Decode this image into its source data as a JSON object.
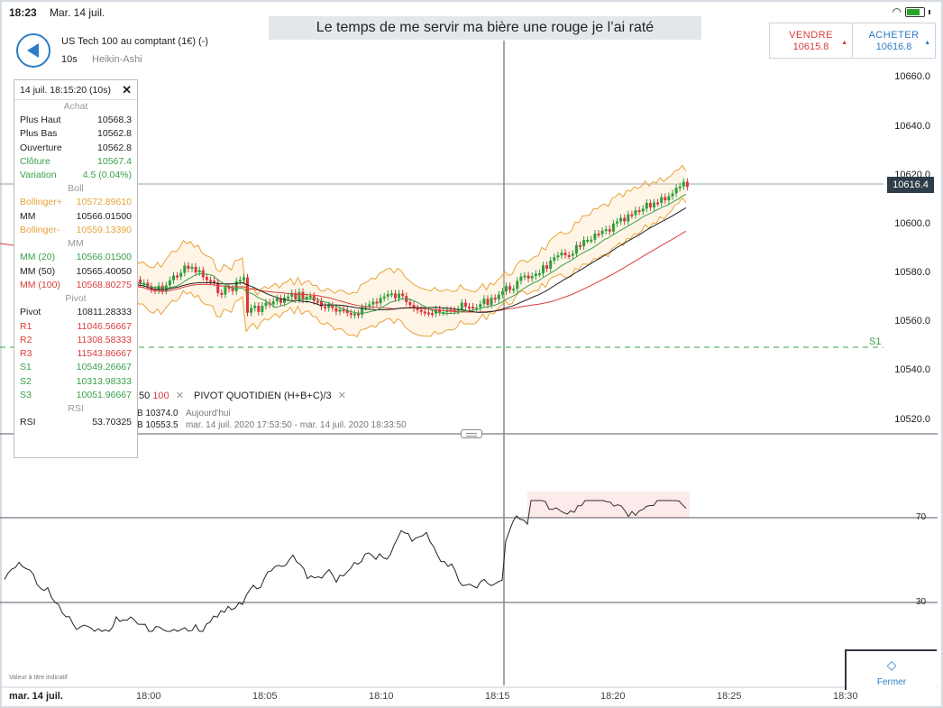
{
  "status_bar": {
    "time": "18:23",
    "date": "Mar. 14 juil."
  },
  "caption": "Le temps de me servir ma bière une rouge je l’ai raté",
  "instrument": {
    "name": "US Tech 100 au comptant (1€) (-)",
    "timeframe": "10s",
    "chart_type": "Heikin-Ashi"
  },
  "trade": {
    "sell_label": "VENDRE",
    "sell_price": "10615.8",
    "buy_label": "ACHETER",
    "buy_price": "10616.8"
  },
  "price_axis": [
    "10660.0",
    "10640.0",
    "10620.0",
    "10600.0",
    "10580.0",
    "10560.0",
    "10540.0",
    "10520.0"
  ],
  "last_price": "10616.4",
  "s1_label": "S1",
  "rsi_levels": [
    "70",
    "30"
  ],
  "time_axis": [
    "18:00",
    "18:05",
    "18:10",
    "18:15",
    "18:20",
    "18:25",
    "18:30"
  ],
  "date_label": "mar. 14 juil.",
  "disclaimer": "Valeur à titre indicatif",
  "close_button": "Fermer",
  "indicators": {
    "row1_prefix": "50",
    "row1_red": "100",
    "row1_pivot": "PIVOT  QUOTIDIEN  (H+B+C)/3",
    "row2_value": "B 10374.0",
    "row2_note": "Aujourd'hui",
    "row3_value": "B 10553.5",
    "row3_note": "mar. 14 juil. 2020 17:53:50 - mar. 14 juil. 2020 18:33:50"
  },
  "info_panel": {
    "header": "14 juil. 18:15:20 (10s)",
    "sections": [
      {
        "title": "Achat",
        "rows": [
          {
            "label": "Plus Haut",
            "value": "10568.3",
            "color": "#222222"
          },
          {
            "label": "Plus Bas",
            "value": "10562.8",
            "color": "#222222"
          },
          {
            "label": "Ouverture",
            "value": "10562.8",
            "color": "#222222"
          },
          {
            "label": "Clôture",
            "value": "10567.4",
            "color": "#3aa04a"
          },
          {
            "label": "Variation",
            "value": "4.5 (0.04%)",
            "color": "#3aa04a"
          }
        ]
      },
      {
        "title": "Boll",
        "rows": [
          {
            "label": "Bollinger+",
            "value": "10572.89610",
            "color": "#e8a33a"
          },
          {
            "label": "MM",
            "value": "10566.01500",
            "color": "#222222"
          },
          {
            "label": "Bollinger-",
            "value": "10559.13390",
            "color": "#e8a33a"
          }
        ]
      },
      {
        "title": "MM",
        "rows": [
          {
            "label": "MM (20)",
            "value": "10566.01500",
            "color": "#3aa04a"
          },
          {
            "label": "MM (50)",
            "value": "10565.40050",
            "color": "#222222"
          },
          {
            "label": "MM (100)",
            "value": "10568.80275",
            "color": "#d93c3c"
          }
        ]
      },
      {
        "title": "Pivot",
        "rows": [
          {
            "label": "Pivot",
            "value": "10811.28333",
            "color": "#222222"
          },
          {
            "label": "R1",
            "value": "11046.56667",
            "color": "#d93c3c"
          },
          {
            "label": "R2",
            "value": "11308.58333",
            "color": "#d93c3c"
          },
          {
            "label": "R3",
            "value": "11543.86667",
            "color": "#d93c3c"
          },
          {
            "label": "S1",
            "value": "10549.26667",
            "color": "#3aa04a"
          },
          {
            "label": "S2",
            "value": "10313.98333",
            "color": "#3aa04a"
          },
          {
            "label": "S3",
            "value": "10051.96667",
            "color": "#3aa04a"
          }
        ]
      },
      {
        "title": "RSI",
        "rows": [
          {
            "label": "RSI",
            "value": "53.70325",
            "color": "#222222"
          }
        ]
      }
    ]
  },
  "colors": {
    "bull": "#2f9e3a",
    "bear": "#d9363e",
    "accent": "#2e7cc4",
    "bollinger": "#e8a33a",
    "ma20": "#3aa04a",
    "ma50": "#222222",
    "ma100": "#d93c3c"
  }
}
